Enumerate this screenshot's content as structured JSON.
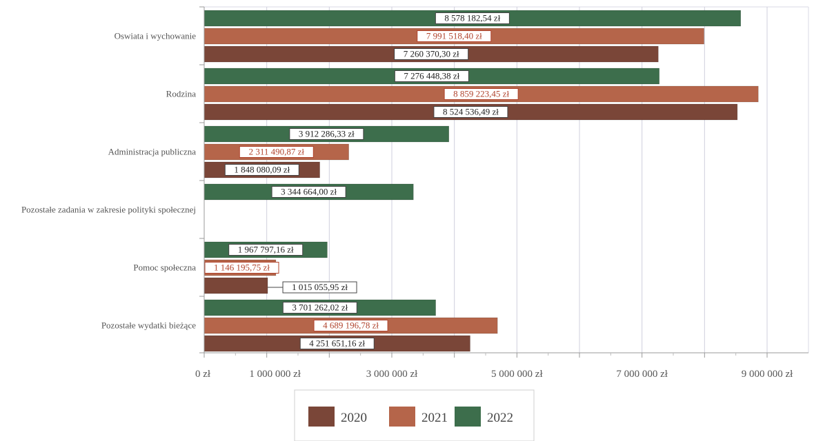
{
  "chart_data": {
    "type": "bar",
    "orientation": "horizontal",
    "categories": [
      "Oswiata i wychowanie",
      "Rodzina",
      "Administracja publiczna",
      "Pozostałe zadania w zakresie polityki społecznej",
      "Pomoc społeczna",
      "Pozostałe wydatki bieżące"
    ],
    "series": [
      {
        "name": "2022",
        "color": "#3d6e4c",
        "values": [
          8578182.54,
          7276448.38,
          3912286.33,
          3344664.0,
          1967797.16,
          3701262.02
        ],
        "labels": [
          "8 578 182,54 zł",
          "7 276 448,38 zł",
          "3 912 286,33 zł",
          "3 344 664,00 zł",
          "1 967 797,16 zł",
          "3 701 262,02 zł"
        ]
      },
      {
        "name": "2021",
        "color": "#b5654a",
        "values": [
          7991518.4,
          8859223.45,
          2311490.87,
          null,
          1146195.75,
          4689196.78
        ],
        "labels": [
          "7 991 518,40 zł",
          "8 859 223,45 zł",
          "2 311 490,87 zł",
          "",
          "1 146 195,75 zł",
          "4 689 196,78 zł"
        ]
      },
      {
        "name": "2020",
        "color": "#7a4638",
        "values": [
          7260370.3,
          8524536.49,
          1848080.09,
          null,
          1015055.95,
          4251651.16
        ],
        "labels": [
          "7 260 370,30 zł",
          "8 524 536,49 zł",
          "1 848 080,09 zł",
          "",
          "1 015 055,95 zł",
          "4 251 651,16 zł"
        ]
      }
    ],
    "xlim": [
      0,
      9500000
    ],
    "x_ticks": [
      0,
      1000000,
      3000000,
      5000000,
      7000000,
      9000000
    ],
    "x_tick_labels": [
      "0 zł",
      "1 000 000 zł",
      "3 000 000 zł",
      "5 000 000 zł",
      "7 000 000 zł",
      "9 000 000 zł"
    ],
    "legend": {
      "position": "bottom",
      "entries": [
        "2020",
        "2021",
        "2022"
      ]
    },
    "grid": true
  }
}
